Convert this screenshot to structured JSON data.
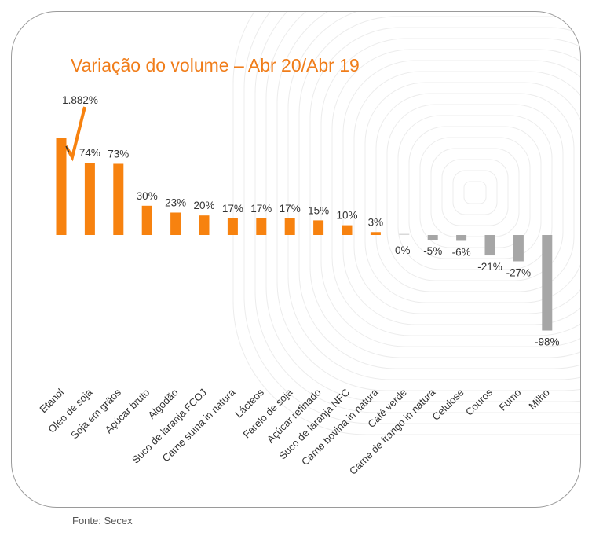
{
  "chart_data": {
    "type": "bar",
    "title": "Variação do volume – Abr 20/Abr 19",
    "source": "Fonte: Secex",
    "categories": [
      "Etanol",
      "Oleo de soja",
      "Soja em grãos",
      "Açúcar bruto",
      "Algodão",
      "Suco de laranja FCOJ",
      "Carne suína in natura",
      "Lácteos",
      "Farelo de soja",
      "Açúcar refinado",
      "Suco de laranja NFC",
      "Carne bovina in natura",
      "Café verde",
      "Carne de frango in natura",
      "Celulose",
      "Couros",
      "Fumo",
      "Milho"
    ],
    "values": [
      1882,
      74,
      73,
      30,
      23,
      20,
      17,
      17,
      17,
      15,
      10,
      3,
      0,
      -5,
      -6,
      -21,
      -27,
      -98
    ],
    "value_labels": [
      "1.882%",
      "74%",
      "73%",
      "30%",
      "23%",
      "20%",
      "17%",
      "17%",
      "17%",
      "15%",
      "10%",
      "3%",
      "0%",
      "-5%",
      "-6%",
      "-21%",
      "-27%",
      "-98%"
    ],
    "axis_break": {
      "category": "Etanol",
      "note": "broken bar"
    },
    "colors": {
      "positive": "#f7820f",
      "negative": "#a6a6a6",
      "title": "#f07d1a"
    },
    "xlabel": "",
    "ylabel": "",
    "grid": false
  }
}
